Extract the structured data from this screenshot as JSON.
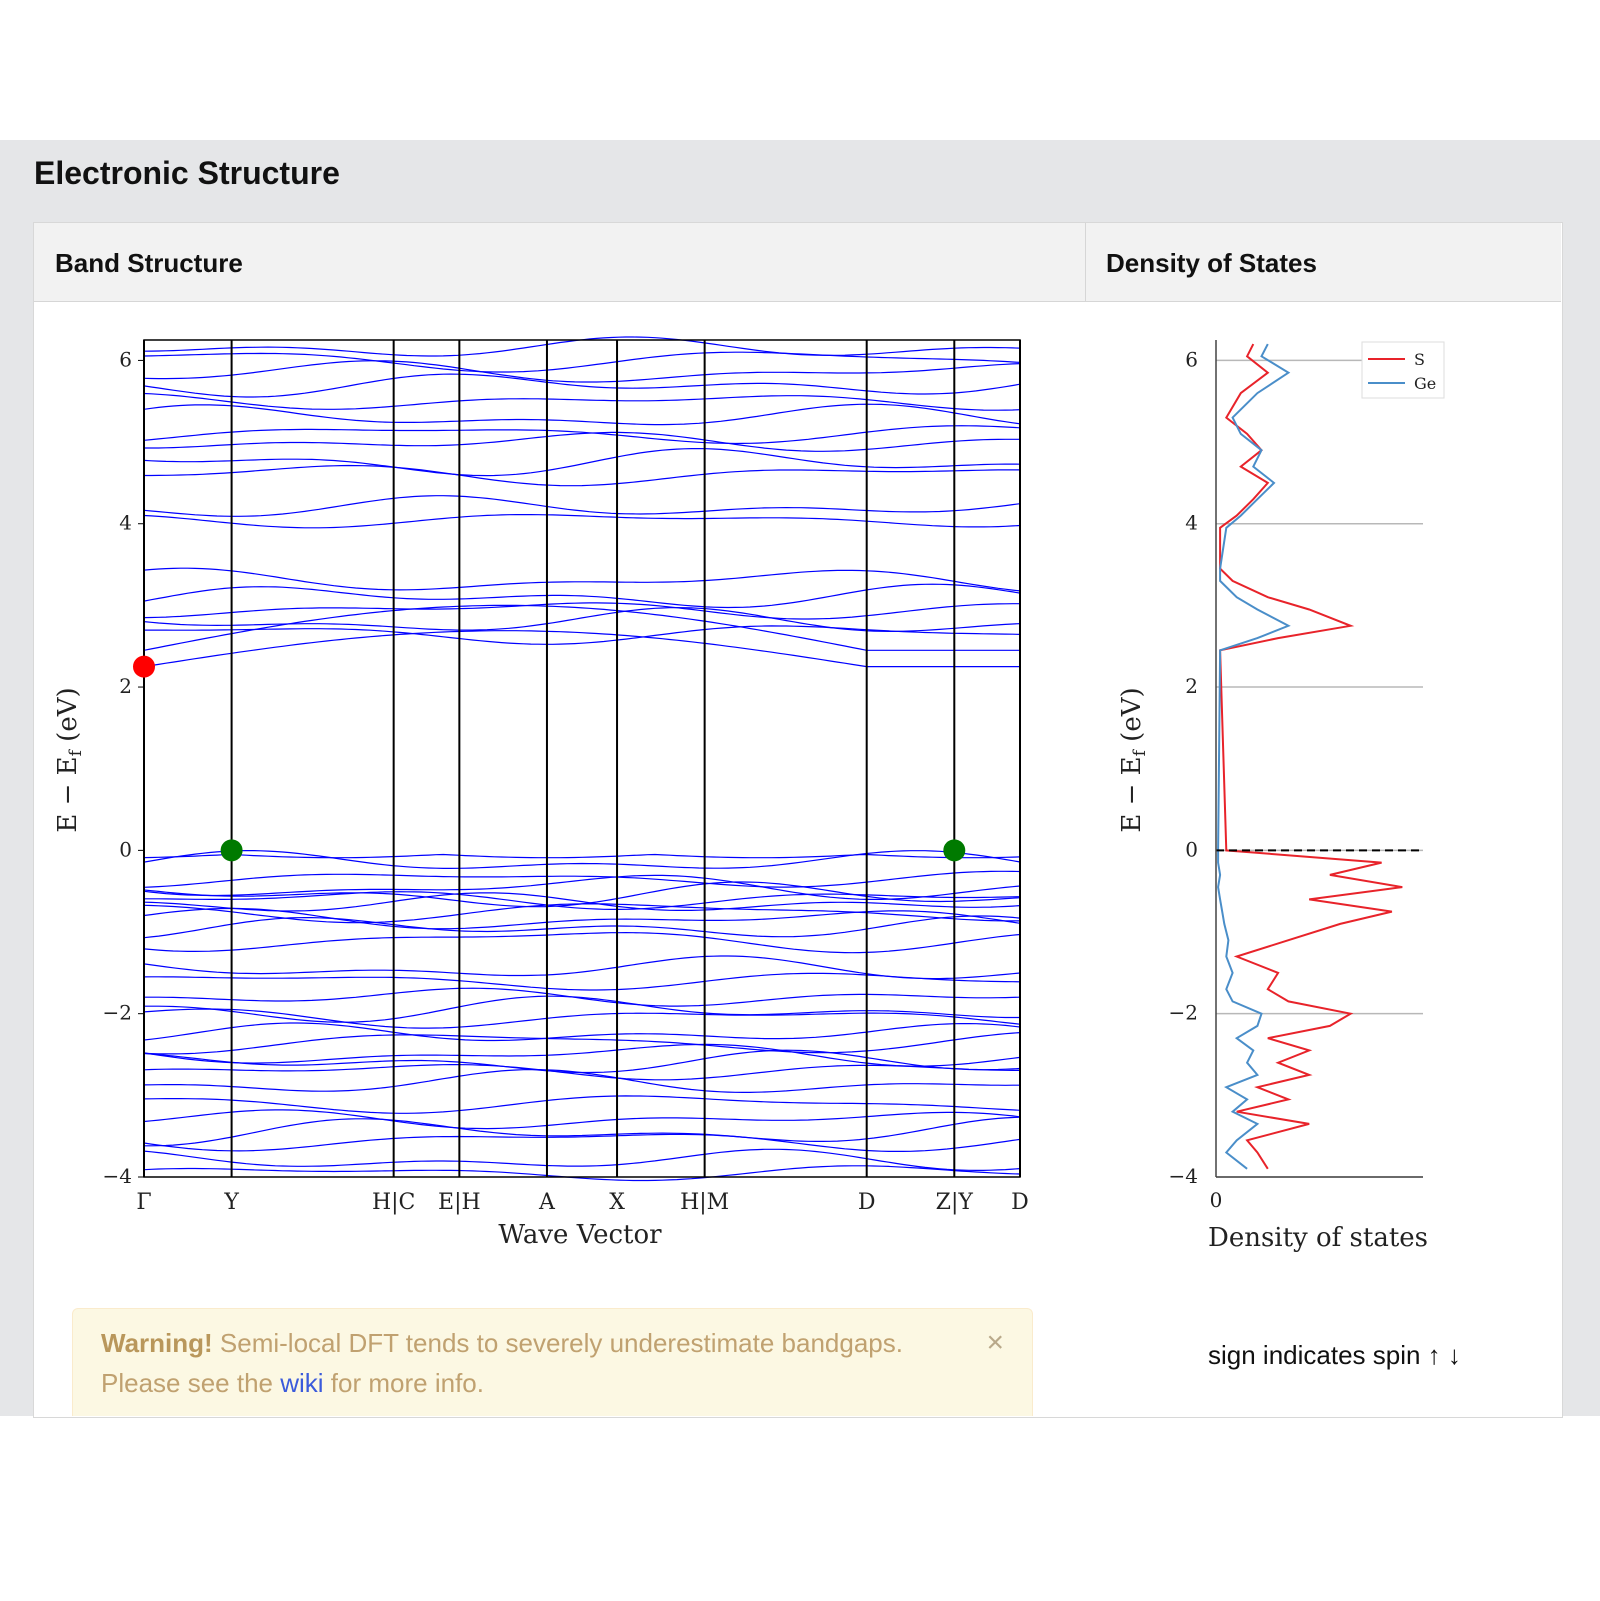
{
  "section": {
    "title": "Electronic Structure"
  },
  "tabs": {
    "band": "Band Structure",
    "dos": "Density of States"
  },
  "alert": {
    "strong": "Warning!",
    "text": " Semi-local DFT tends to severely underestimate bandgaps.",
    "line2_prefix": "Please see the ",
    "link": "wiki",
    "line2_suffix": " for more info.",
    "close": "×"
  },
  "dos_note": "sign indicates spin ↑ ↓",
  "chart_data": [
    {
      "type": "line",
      "xlabel": "Wave Vector",
      "ylabel": "E − E",
      "ylabel_sub": "f",
      "ylabel_unit": " (eV)",
      "ylim": [
        -4,
        6.25
      ],
      "yticks": [
        -4,
        -2,
        0,
        2,
        4,
        6
      ],
      "kpoints": [
        {
          "label": "Γ",
          "x": 0
        },
        {
          "label": "Y",
          "x": 1
        },
        {
          "label": "H|C",
          "x": 2.85
        },
        {
          "label": "E|H",
          "x": 3.6
        },
        {
          "label": "A",
          "x": 4.6
        },
        {
          "label": "X",
          "x": 5.4
        },
        {
          "label": "H|M",
          "x": 6.4
        },
        {
          "label": "D",
          "x": 8.25
        },
        {
          "label": "Z|Y",
          "x": 9.25
        },
        {
          "label": "D",
          "x": 10
        }
      ],
      "band_energies_at_gamma": [
        -3.95,
        -3.8,
        -3.55,
        -3.45,
        -3.3,
        -3.1,
        -2.85,
        -2.7,
        -2.6,
        -2.5,
        -2.35,
        -2.25,
        -2.05,
        -1.95,
        -1.8,
        -1.6,
        -1.45,
        -1.1,
        -0.95,
        -0.85,
        -0.75,
        -0.65,
        -0.6,
        -0.55,
        -0.45,
        -0.35,
        -0.15,
        -0.05,
        2.25,
        2.45,
        2.65,
        2.8,
        2.95,
        3.1,
        3.3,
        4.05,
        4.2,
        4.6,
        4.75,
        5.0,
        5.1,
        5.3,
        5.5,
        5.7,
        5.85,
        6.0,
        6.15
      ],
      "markers": [
        {
          "type": "CBM",
          "color": "#ff0000",
          "k": 0,
          "e": 2.25
        },
        {
          "type": "VBM",
          "color": "#007a00",
          "k": 1,
          "e": 0
        },
        {
          "type": "VBM",
          "color": "#007a00",
          "k": 9.25,
          "e": 0
        }
      ],
      "line_color": "#0000ff"
    },
    {
      "type": "line",
      "xlabel": "Density of states",
      "ylabel": "E − E",
      "ylabel_sub": "f",
      "ylabel_unit": " (eV)",
      "ylim": [
        -4,
        6.25
      ],
      "yticks": [
        -4,
        -2,
        0,
        2,
        4,
        6
      ],
      "xticks": [
        0
      ],
      "grid": true,
      "legend_position": "top-right",
      "fermi_line": 0,
      "series": [
        {
          "name": "S",
          "color": "#e8232a",
          "energy": [
            -3.9,
            -3.7,
            -3.55,
            -3.35,
            -3.2,
            -3.05,
            -2.9,
            -2.75,
            -2.6,
            -2.45,
            -2.3,
            -2.15,
            -2.0,
            -1.85,
            -1.7,
            -1.5,
            -1.3,
            -1.1,
            -0.9,
            -0.75,
            -0.6,
            -0.45,
            -0.3,
            -0.15,
            0.0,
            2.45,
            2.6,
            2.75,
            2.95,
            3.1,
            3.3,
            3.45,
            3.95,
            4.1,
            4.3,
            4.5,
            4.7,
            4.9,
            5.1,
            5.3,
            5.6,
            5.85,
            6.05,
            6.2
          ],
          "values": [
            0.25,
            0.2,
            0.15,
            0.45,
            0.1,
            0.35,
            0.2,
            0.45,
            0.3,
            0.45,
            0.25,
            0.55,
            0.65,
            0.35,
            0.25,
            0.3,
            0.1,
            0.35,
            0.6,
            0.85,
            0.45,
            0.9,
            0.55,
            0.8,
            0.05,
            0.02,
            0.3,
            0.65,
            0.45,
            0.25,
            0.08,
            0.02,
            0.02,
            0.1,
            0.18,
            0.25,
            0.12,
            0.22,
            0.15,
            0.05,
            0.12,
            0.25,
            0.15,
            0.18
          ]
        },
        {
          "name": "Ge",
          "color": "#4a8ec9",
          "energy": [
            -3.9,
            -3.7,
            -3.55,
            -3.35,
            -3.2,
            -3.05,
            -2.9,
            -2.75,
            -2.6,
            -2.45,
            -2.3,
            -2.15,
            -2.0,
            -1.85,
            -1.7,
            -1.5,
            -1.3,
            -1.1,
            -0.9,
            -0.75,
            -0.6,
            -0.45,
            -0.3,
            -0.15,
            0.0,
            2.45,
            2.6,
            2.75,
            2.95,
            3.1,
            3.3,
            3.45,
            3.95,
            4.1,
            4.3,
            4.5,
            4.7,
            4.9,
            5.1,
            5.3,
            5.6,
            5.85,
            6.05,
            6.2
          ],
          "values": [
            0.15,
            0.05,
            0.1,
            0.2,
            0.08,
            0.15,
            0.05,
            0.2,
            0.15,
            0.18,
            0.1,
            0.2,
            0.22,
            0.08,
            0.05,
            0.08,
            0.05,
            0.06,
            0.04,
            0.03,
            0.02,
            0.01,
            0.02,
            0.01,
            0.01,
            0.02,
            0.2,
            0.35,
            0.2,
            0.1,
            0.02,
            0.02,
            0.05,
            0.12,
            0.2,
            0.28,
            0.18,
            0.22,
            0.12,
            0.08,
            0.2,
            0.35,
            0.22,
            0.25
          ]
        }
      ]
    }
  ]
}
